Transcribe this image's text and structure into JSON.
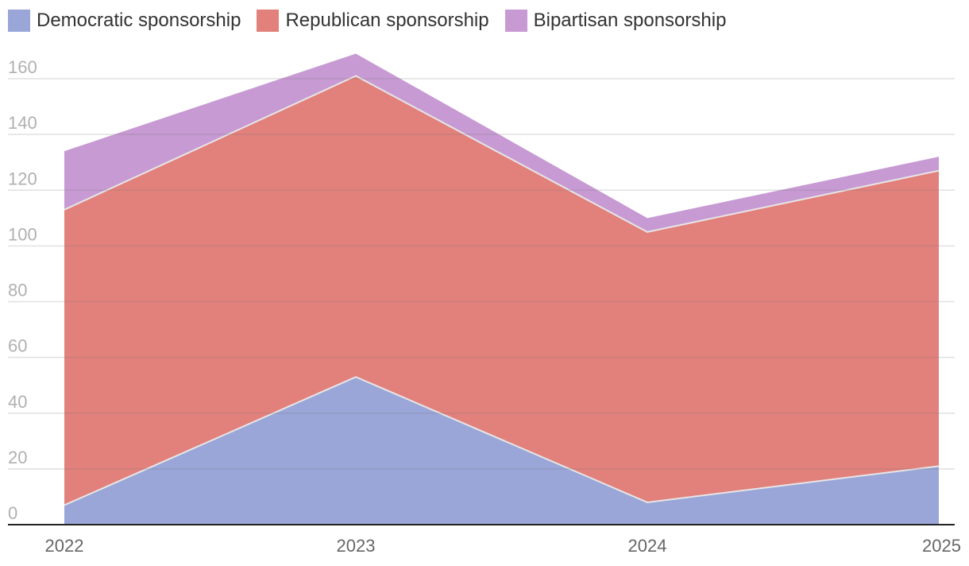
{
  "chart_data": {
    "type": "area",
    "stacked": true,
    "title": "",
    "xlabel": "",
    "ylabel": "",
    "categories": [
      "2022",
      "2023",
      "2024",
      "2025"
    ],
    "series": [
      {
        "name": "Democratic sponsorship",
        "values": [
          7,
          53,
          8,
          21
        ],
        "color": "#9aa5d8"
      },
      {
        "name": "Republican sponsorship",
        "values": [
          106,
          108,
          97,
          106
        ],
        "color": "#e2807c"
      },
      {
        "name": "Bipartisan sponsorship",
        "values": [
          21,
          8,
          5,
          5
        ],
        "color": "#c79ad3"
      }
    ],
    "ylim": [
      0,
      160
    ],
    "yticks": [
      "0",
      "20",
      "40",
      "60",
      "80",
      "100",
      "120",
      "140",
      "160"
    ],
    "grid": true,
    "legend_position": "top-left"
  }
}
